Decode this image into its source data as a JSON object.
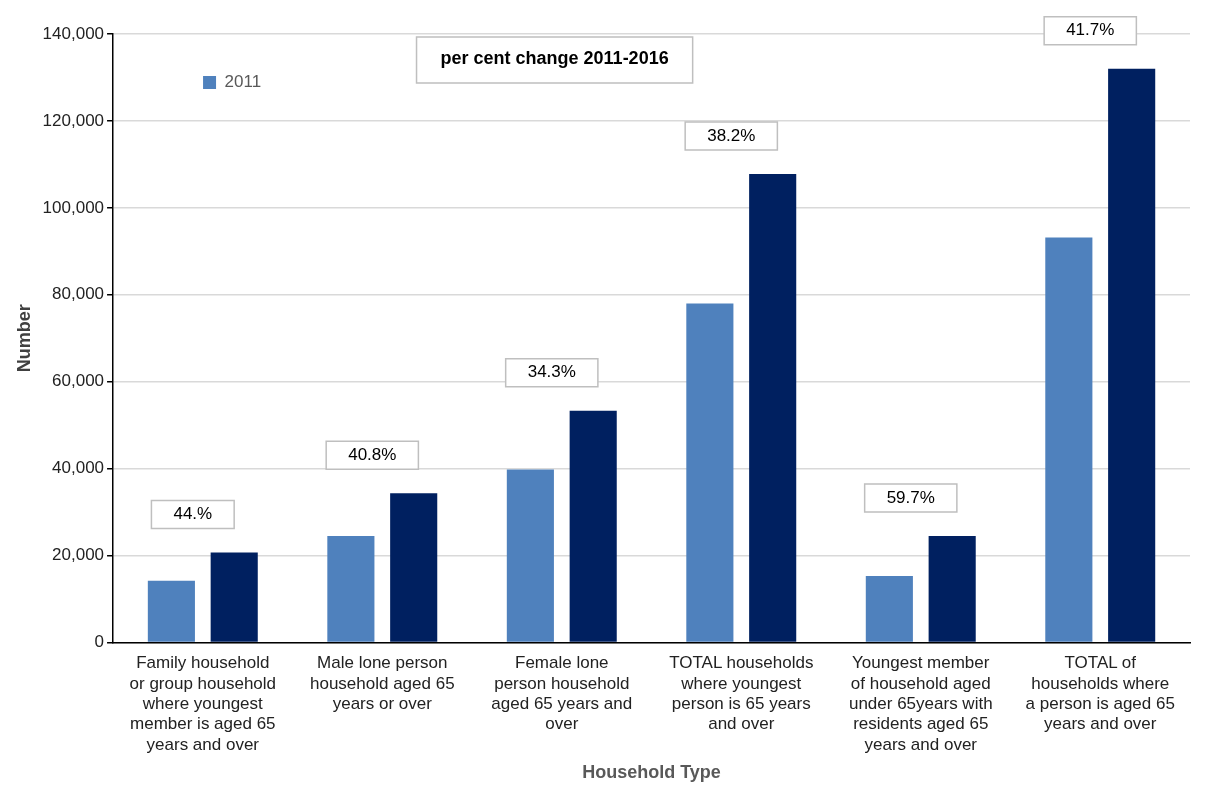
{
  "chart_data": {
    "type": "bar",
    "title": "per cent change 2011-2016",
    "xlabel": "Household Type",
    "ylabel": "Number",
    "categories": [
      "Family household or group household where youngest member is aged 65 years and over",
      "Male lone person household aged 65 years or over",
      "Female lone person household aged 65 years and over",
      "TOTAL households where youngest person is 65 years and over",
      "Youngest member of household aged under 65years with residents aged 65 years and over",
      "TOTAL of households where a person is aged 65 years and over"
    ],
    "series": [
      {
        "name": "2011",
        "color": "#4f81bd",
        "values": [
          14200,
          24500,
          39800,
          78000,
          15300,
          93200
        ]
      },
      {
        "color": "#002060",
        "values": [
          20700,
          34300,
          53300,
          107800,
          24500,
          132000
        ]
      }
    ],
    "annotations": [
      "44.%",
      "40.8%",
      "34.3%",
      "38.2%",
      "59.7%",
      "41.7%"
    ],
    "ylim": [
      0,
      140000
    ],
    "yticks": [
      0,
      {
        "value": 20000,
        "label": "20,000"
      },
      {
        "value": 40000,
        "label": "40,000"
      },
      {
        "value": 60000,
        "label": "60,000"
      },
      {
        "value": 80000,
        "label": "80,000"
      },
      {
        "value": 100000,
        "label": "100,000"
      },
      {
        "value": 120000,
        "label": "120,000"
      },
      {
        "value": 140000,
        "label": "140,000"
      }
    ],
    "grid": "y",
    "legend": "top left"
  }
}
